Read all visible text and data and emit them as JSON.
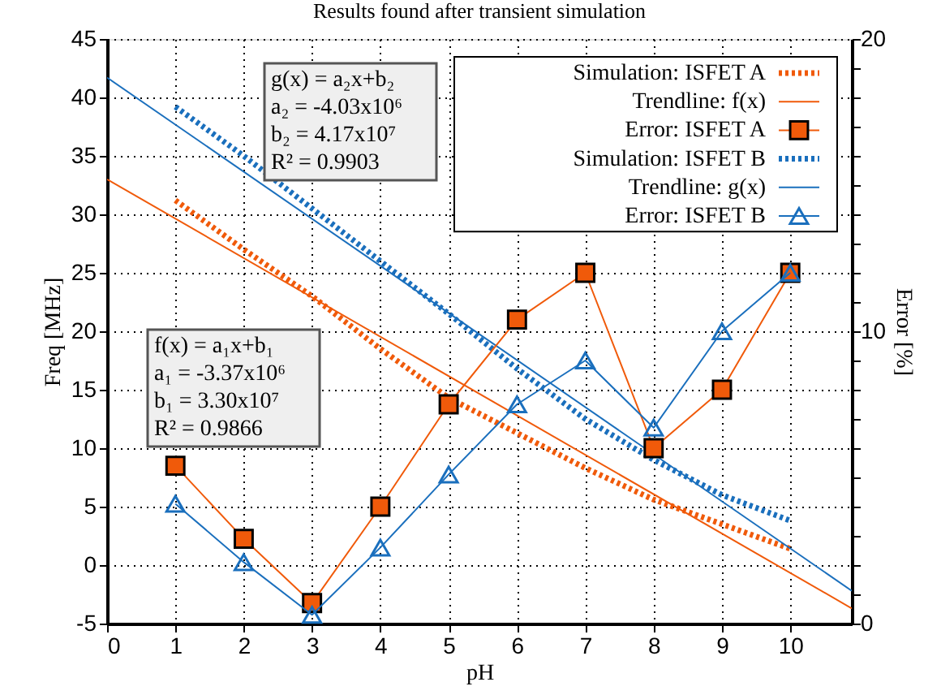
{
  "chart_data": {
    "type": "line",
    "title": "Results found after transient simulation",
    "xlabel": "pH",
    "ylabel": "Freq [MHz]",
    "y2label": "Error [%]",
    "xlim": [
      0,
      10.9
    ],
    "xticks": [
      0,
      1,
      2,
      3,
      4,
      5,
      6,
      7,
      8,
      9,
      10
    ],
    "ylim": [
      -5,
      45
    ],
    "yticks": [
      -5,
      0,
      5,
      10,
      15,
      20,
      25,
      30,
      35,
      40,
      45
    ],
    "y2lim": [
      0,
      20
    ],
    "y2ticks": [
      0,
      {
        "value": 1,
        "label": null
      },
      {
        "value": 2,
        "label": null
      },
      {
        "value": 3,
        "label": null
      },
      {
        "value": 4,
        "label": null
      },
      {
        "value": 5,
        "label": null
      },
      {
        "value": 6,
        "label": null
      },
      {
        "value": 7,
        "label": null
      },
      {
        "value": 8,
        "label": null
      },
      {
        "value": 9,
        "label": null
      },
      10,
      {
        "value": 11,
        "label": null
      },
      {
        "value": 12,
        "label": null
      },
      {
        "value": 13,
        "label": null
      },
      {
        "value": 14,
        "label": null
      },
      {
        "value": 15,
        "label": null
      },
      {
        "value": 16,
        "label": null
      },
      {
        "value": 17,
        "label": null
      },
      {
        "value": 18,
        "label": null
      },
      {
        "value": 19,
        "label": null
      },
      20
    ],
    "grid": true,
    "legend": "top right",
    "annotations": [
      "g(x) = a₂x+b₂",
      "a₂ = -4.03x10⁶",
      "b₂ = 4.17x10⁷",
      "R² = 0.9903",
      "f(x) = a₁x+b₁",
      "a₁ = -3.37x10⁶",
      "b₁ = 3.30x10⁷",
      "R² = 0.9866"
    ],
    "series": [
      {
        "name": "Simulation: ISFET A",
        "color": "#f05a0a",
        "line_style": "dotted",
        "marker": "none",
        "x": [
          1,
          2,
          3,
          4,
          5,
          6,
          7,
          8,
          9,
          10
        ],
        "values": [
          31.2,
          27,
          23,
          18.5,
          14.3,
          11.3,
          8.3,
          5.6,
          3.5,
          1.4
        ]
      },
      {
        "name": "Trendline: f(x)",
        "color": "#f05a0a",
        "line_style": "solid",
        "marker": "none",
        "x": [
          0,
          10.9
        ],
        "values": [
          33.0,
          -3.7
        ]
      },
      {
        "name": "Error: ISFET A",
        "color": "#f05a0a",
        "line_style": "solid",
        "marker": "square",
        "axis": "y2",
        "x": [
          1,
          2,
          3,
          4,
          5,
          6,
          7,
          8,
          9,
          10
        ],
        "values": [
          5.4,
          2.9,
          0.7,
          4.0,
          7.5,
          10.4,
          12.0,
          6.0,
          8.0,
          12.0
        ]
      },
      {
        "name": "Simulation: ISFET B",
        "color": "#1a6fbd",
        "line_style": "dotted",
        "marker": "none",
        "x": [
          1,
          2,
          3,
          4,
          5,
          6,
          7,
          8,
          9,
          10
        ],
        "values": [
          39.2,
          35,
          30.5,
          26,
          21.5,
          16.8,
          12.5,
          9,
          6,
          3.8
        ]
      },
      {
        "name": "Trendline: g(x)",
        "color": "#1a6fbd",
        "line_style": "solid",
        "marker": "none",
        "x": [
          0,
          10.9
        ],
        "values": [
          41.7,
          -2.2
        ]
      },
      {
        "name": "Error: ISFET B",
        "color": "#1a6fbd",
        "line_style": "solid",
        "marker": "triangle",
        "axis": "y2",
        "x": [
          1,
          2,
          3,
          4,
          5,
          6,
          7,
          8,
          9,
          10
        ],
        "values": [
          4.1,
          2.1,
          0.3,
          2.6,
          5.1,
          7.5,
          9.0,
          6.7,
          10.0,
          12.0
        ]
      }
    ]
  }
}
